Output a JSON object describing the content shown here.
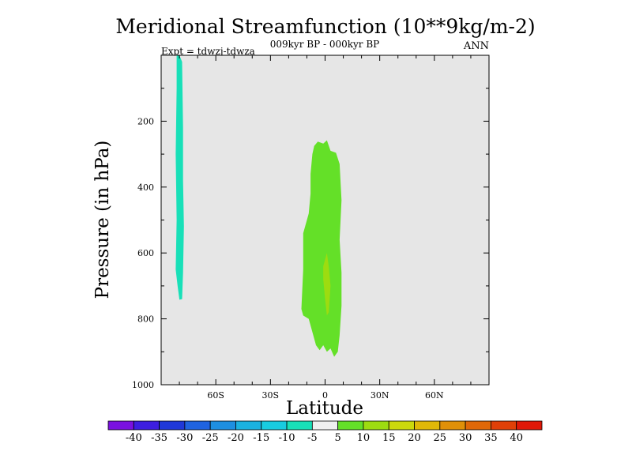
{
  "chart_data": {
    "type": "contour",
    "title": "Meridional Streamfunction (10**9kg/m-2)",
    "subtitle": "009kyr BP - 000kyr BP",
    "left_label": "Expt = tdwzj-tdwza",
    "right_label": "ANN",
    "xlabel": "Latitude",
    "ylabel": "Pressure (in hPa)",
    "xlim": [
      -90,
      90
    ],
    "ylim": [
      1000,
      0
    ],
    "xticks": [
      {
        "value": -60,
        "label": "60S"
      },
      {
        "value": -30,
        "label": "30S"
      },
      {
        "value": 0,
        "label": "0"
      },
      {
        "value": 30,
        "label": "30N"
      },
      {
        "value": 60,
        "label": "60N"
      }
    ],
    "yticks": [
      {
        "value": 200,
        "label": "200"
      },
      {
        "value": 400,
        "label": "400"
      },
      {
        "value": 600,
        "label": "600"
      },
      {
        "value": 800,
        "label": "800"
      },
      {
        "value": 1000,
        "label": "1000"
      }
    ],
    "plot_background": "#e6e6e6",
    "colorbar": {
      "labels": [
        "-40",
        "-35",
        "-30",
        "-25",
        "-20",
        "-15",
        "-10",
        "-5",
        "5",
        "10",
        "15",
        "20",
        "25",
        "30",
        "35",
        "40"
      ],
      "colors": [
        "#7a10e0",
        "#3d1ee0",
        "#1f38d8",
        "#1f63e0",
        "#1d8fe0",
        "#1bb2e0",
        "#18cce0",
        "#18e0b8",
        "#f0f0f0",
        "#64e028",
        "#9ddc10",
        "#ccd80c",
        "#e0b808",
        "#e09008",
        "#e06808",
        "#e04008",
        "#e01808"
      ]
    },
    "regions": [
      {
        "name": "negative-cell-sh",
        "level_range": "-10 to -5",
        "color": "#18e0b8",
        "outline": [
          [
            -81.5,
            0
          ],
          [
            -80,
            0
          ],
          [
            -78.5,
            20
          ],
          [
            -78,
            220
          ],
          [
            -78,
            380
          ],
          [
            -77.5,
            520
          ],
          [
            -78,
            660
          ],
          [
            -78.5,
            740
          ],
          [
            -80,
            742
          ],
          [
            -81,
            700
          ],
          [
            -82,
            650
          ],
          [
            -81.5,
            500
          ],
          [
            -82,
            300
          ],
          [
            -81.5,
            100
          ]
        ]
      },
      {
        "name": "positive-cell-eq",
        "level_range": "5 to 10",
        "color": "#64e028",
        "outline": [
          [
            -6,
            275
          ],
          [
            -4,
            262
          ],
          [
            -1,
            268
          ],
          [
            1,
            258
          ],
          [
            3,
            290
          ],
          [
            6,
            296
          ],
          [
            8,
            330
          ],
          [
            9,
            440
          ],
          [
            8,
            560
          ],
          [
            9,
            660
          ],
          [
            9,
            760
          ],
          [
            8,
            850
          ],
          [
            7,
            900
          ],
          [
            5,
            915
          ],
          [
            3,
            890
          ],
          [
            1,
            900
          ],
          [
            -1,
            880
          ],
          [
            -3,
            895
          ],
          [
            -5,
            880
          ],
          [
            -7,
            840
          ],
          [
            -9,
            800
          ],
          [
            -12,
            790
          ],
          [
            -13,
            770
          ],
          [
            -12,
            650
          ],
          [
            -12,
            540
          ],
          [
            -9,
            480
          ],
          [
            -8,
            420
          ],
          [
            -8,
            360
          ],
          [
            -7,
            300
          ]
        ]
      },
      {
        "name": "positive-core-eq",
        "level_range": "10 to 15",
        "color": "#9ddc10",
        "outline": [
          [
            1,
            600
          ],
          [
            2,
            640
          ],
          [
            3,
            700
          ],
          [
            2,
            780
          ],
          [
            1,
            790
          ],
          [
            0,
            740
          ],
          [
            -1,
            680
          ],
          [
            -1,
            640
          ]
        ]
      }
    ]
  }
}
